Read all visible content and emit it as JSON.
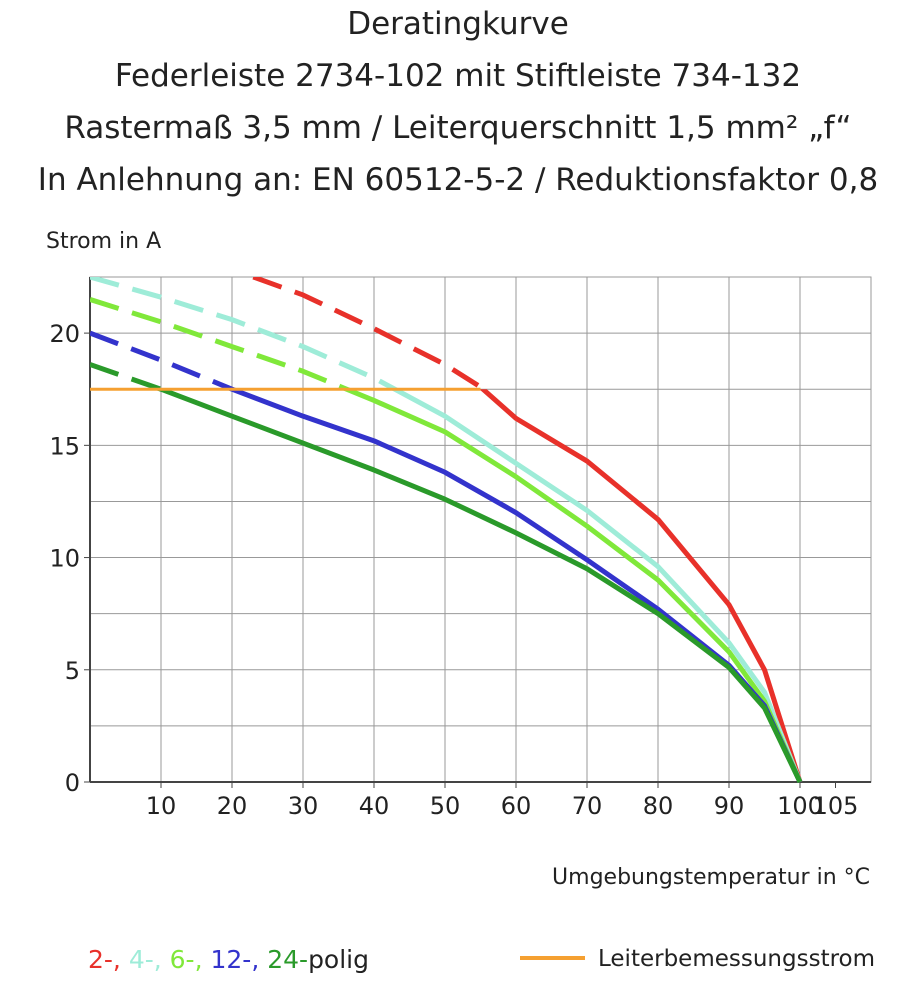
{
  "chart_data": {
    "type": "line",
    "title": [
      "Deratingkurve",
      "Federleiste 2734-102 mit Stiftleiste 734-132",
      "Rastermaß 3,5 mm / Leiterquerschnitt 1,5 mm² „f“",
      "In Anlehnung an: EN 60512-5-2 / Reduktionsfaktor 0,8"
    ],
    "y_label": "Strom in A",
    "x_label": "Umgebungstemperatur in °C",
    "xlim": [
      0,
      110
    ],
    "ylim": [
      0,
      22.5
    ],
    "xticks": [
      10,
      20,
      30,
      40,
      50,
      60,
      70,
      80,
      90,
      100,
      105
    ],
    "yticks": [
      0,
      5,
      10,
      15,
      20
    ],
    "xgrid": [
      10,
      20,
      30,
      40,
      50,
      60,
      70,
      80,
      90,
      100
    ],
    "ygrid": [
      2.5,
      5,
      7.5,
      10,
      12.5,
      15,
      17.5,
      20,
      22.5
    ],
    "series": [
      {
        "name": "2-,",
        "color": "#e8312a",
        "x": [
          23,
          30,
          40,
          50,
          55,
          60,
          70,
          80,
          90,
          95,
          100
        ],
        "values": [
          22.5,
          21.7,
          20.2,
          18.6,
          17.6,
          16.2,
          14.3,
          11.7,
          7.9,
          5,
          0
        ]
      },
      {
        "name": "4-,",
        "color": "#9eecd8",
        "x": [
          0,
          10,
          20,
          30,
          40,
          50,
          60,
          70,
          80,
          90,
          95,
          100
        ],
        "values": [
          22.5,
          21.6,
          20.6,
          19.4,
          18,
          16.3,
          14.2,
          12.1,
          9.6,
          6.2,
          4,
          0
        ]
      },
      {
        "name": "6-,",
        "color": "#80e83a",
        "x": [
          0,
          10,
          20,
          30,
          40,
          50,
          60,
          70,
          80,
          90,
          95,
          100
        ],
        "values": [
          21.5,
          20.5,
          19.4,
          18.3,
          17,
          15.6,
          13.6,
          11.4,
          9,
          5.8,
          3.6,
          0
        ]
      },
      {
        "name": "12-,",
        "color": "#3333cc",
        "x": [
          0,
          10,
          20,
          30,
          40,
          50,
          60,
          70,
          80,
          90,
          95,
          100
        ],
        "values": [
          20,
          18.8,
          17.5,
          16.3,
          15.2,
          13.8,
          12,
          9.9,
          7.7,
          5.2,
          3.4,
          0
        ]
      },
      {
        "name": "24-",
        "color": "#2a9a2a",
        "x": [
          0,
          10,
          20,
          30,
          40,
          50,
          60,
          70,
          80,
          90,
          95,
          100
        ],
        "values": [
          18.6,
          17.5,
          16.3,
          15.1,
          13.9,
          12.6,
          11.1,
          9.5,
          7.5,
          5.1,
          3.3,
          0
        ]
      }
    ],
    "legend_suffix": "polig",
    "reference": {
      "name": "Leiterbemessungsstrom",
      "color": "#f5a031",
      "x": [
        0,
        55
      ],
      "values": [
        17.5,
        17.5
      ]
    }
  }
}
